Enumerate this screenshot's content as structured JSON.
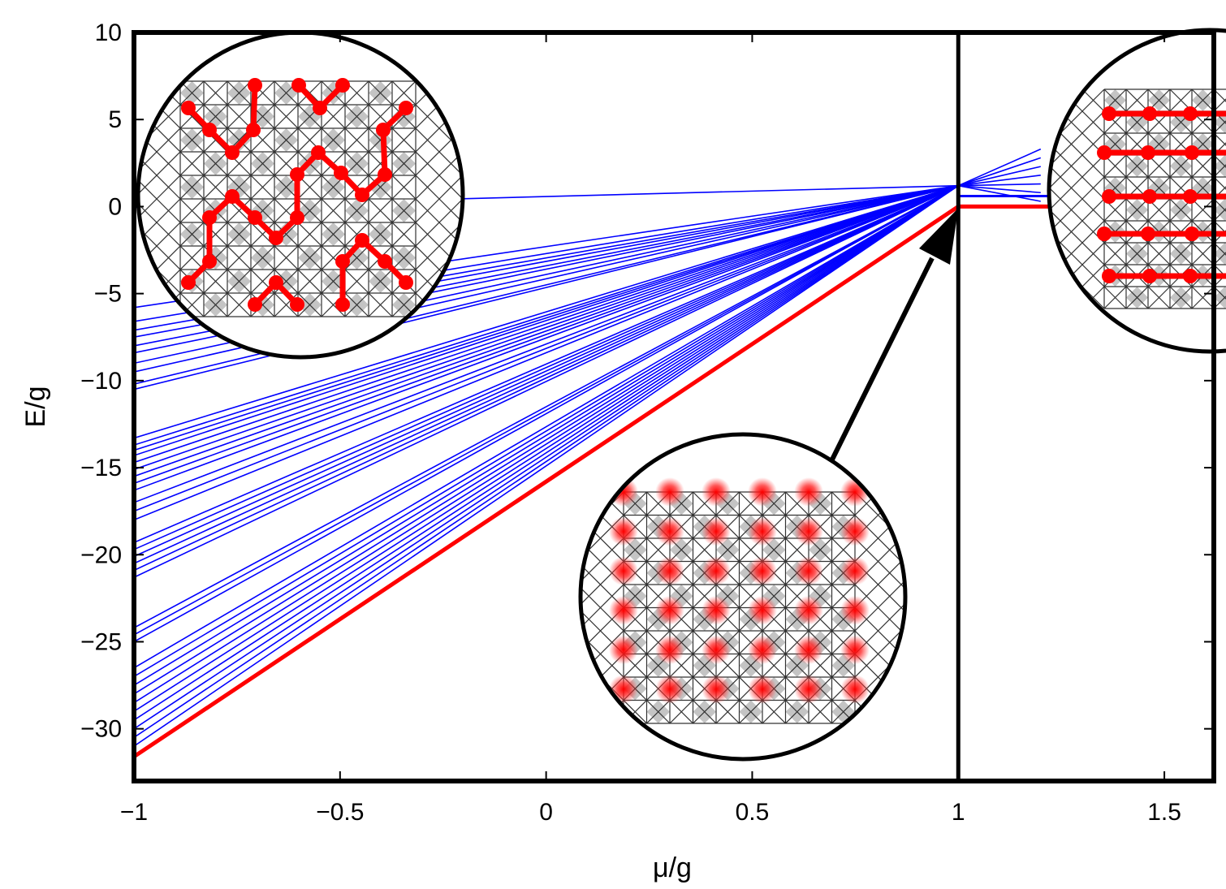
{
  "chart_data": {
    "type": "line",
    "title": "",
    "xlabel": "μ/g",
    "ylabel": "E/g",
    "xlim": [
      -1,
      1.62
    ],
    "ylim": [
      -33,
      10
    ],
    "grid": false,
    "x_ticks": [
      {
        "value": -1,
        "label": "−1"
      },
      {
        "value": -0.5,
        "label": "−0.5"
      },
      {
        "value": 0,
        "label": "0"
      },
      {
        "value": 0.5,
        "label": "0.5"
      },
      {
        "value": 1,
        "label": "1"
      },
      {
        "value": 1.5,
        "label": "1.5"
      }
    ],
    "y_ticks": [
      {
        "value": 10,
        "label": "10"
      },
      {
        "value": 5,
        "label": "5"
      },
      {
        "value": 0,
        "label": "0"
      },
      {
        "value": -5,
        "label": "−5"
      },
      {
        "value": -10,
        "label": "−10"
      },
      {
        "value": -15,
        "label": "−15"
      },
      {
        "value": -20,
        "label": "−20"
      },
      {
        "value": -25,
        "label": "−25"
      },
      {
        "value": -30,
        "label": "−30"
      }
    ],
    "critical_x": 1,
    "ground_state": {
      "color": "#ff0000",
      "points": [
        [
          -1,
          -31.6
        ],
        [
          1,
          0
        ],
        [
          1.62,
          0
        ]
      ]
    },
    "excited_states": {
      "color": "#0000ff",
      "start_x": -1,
      "meet_x": 1,
      "meet_y": 1.2,
      "start_values": [
        -0.05,
        -5.8,
        -6.6,
        -7.1,
        -7.5,
        -8.0,
        -8.4,
        -9.0,
        -9.5,
        -10.2,
        -10.5,
        -13.3,
        -13.7,
        -14.0,
        -14.3,
        -14.7,
        -15.1,
        -15.5,
        -15.9,
        -16.3,
        -17.0,
        -17.5,
        -18.0,
        -19.3,
        -19.7,
        -20.1,
        -20.5,
        -20.9,
        -21.3,
        -24.2,
        -24.6,
        -25.0,
        -26.5,
        -27.0,
        -27.5,
        -28.0,
        -28.5,
        -29.0,
        -29.5,
        -30.0,
        -30.5,
        -31.0
      ],
      "fan_end_x": 1.2,
      "fan_end_values": [
        0.3,
        0.8,
        1.3,
        1.8,
        2.3,
        2.8,
        3.3
      ]
    },
    "insets": [
      {
        "name": "random-dimer-configuration",
        "position": "top-left"
      },
      {
        "name": "uniform-superposition-state",
        "position": "bottom-center"
      },
      {
        "name": "aligned-dimer-configuration",
        "position": "top-right"
      }
    ],
    "arrow": {
      "from": "uniform-superposition-state",
      "to_x": 1,
      "to_y": 0
    }
  }
}
